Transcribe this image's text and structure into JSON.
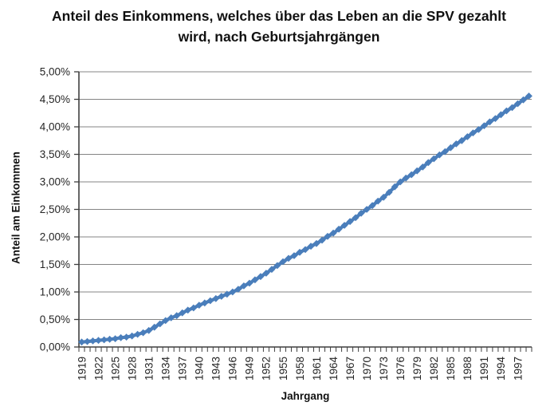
{
  "colors": {
    "series_blue": "#4a7ebb",
    "gridline_gray": "#848484",
    "axis_gray": "#3f3f3f",
    "tick_label_color": "#262626",
    "background": "#ffffff"
  },
  "chart_data": {
    "type": "line",
    "title": "Anteil des Einkommens, welches über das Leben an die SPV gezahlt wird, nach Geburtsjahrgängen",
    "xlabel": "Jahrgang",
    "ylabel": "Anteil am Einkommen",
    "ylim": [
      0,
      5
    ],
    "grid": true,
    "legend": "none",
    "y_tick_values": [
      0,
      0.5,
      1,
      1.5,
      2,
      2.5,
      3,
      3.5,
      4,
      4.5,
      5
    ],
    "y_tick_labels": [
      "0,00%",
      "0,50%",
      "1,00%",
      "1,50%",
      "2,00%",
      "2,50%",
      "3,00%",
      "3,50%",
      "4,00%",
      "4,50%",
      "5,00%"
    ],
    "x_tick_labels": [
      1919,
      1922,
      1925,
      1928,
      1931,
      1934,
      1937,
      1940,
      1943,
      1946,
      1949,
      1952,
      1955,
      1958,
      1961,
      1964,
      1967,
      1970,
      1973,
      1976,
      1979,
      1982,
      1985,
      1988,
      1991,
      1994,
      1997
    ],
    "series": [
      {
        "marker": "diamond",
        "color": "#4a7ebb",
        "x": [
          1919,
          1920,
          1921,
          1922,
          1923,
          1924,
          1925,
          1926,
          1927,
          1928,
          1929,
          1930,
          1931,
          1932,
          1933,
          1934,
          1935,
          1936,
          1937,
          1938,
          1939,
          1940,
          1941,
          1942,
          1943,
          1944,
          1945,
          1946,
          1947,
          1948,
          1949,
          1950,
          1951,
          1952,
          1953,
          1954,
          1955,
          1956,
          1957,
          1958,
          1959,
          1960,
          1961,
          1962,
          1963,
          1964,
          1965,
          1966,
          1967,
          1968,
          1969,
          1970,
          1971,
          1972,
          1973,
          1974,
          1975,
          1976,
          1977,
          1978,
          1979,
          1980,
          1981,
          1982,
          1983,
          1984,
          1985,
          1986,
          1987,
          1988,
          1989,
          1990,
          1991,
          1992,
          1993,
          1994,
          1995,
          1996,
          1997,
          1998,
          1999
        ],
        "y": [
          0.09,
          0.1,
          0.11,
          0.12,
          0.13,
          0.14,
          0.15,
          0.17,
          0.18,
          0.2,
          0.23,
          0.26,
          0.3,
          0.36,
          0.42,
          0.48,
          0.53,
          0.57,
          0.62,
          0.67,
          0.71,
          0.76,
          0.8,
          0.84,
          0.88,
          0.92,
          0.96,
          1.0,
          1.05,
          1.11,
          1.16,
          1.22,
          1.28,
          1.34,
          1.41,
          1.48,
          1.55,
          1.61,
          1.66,
          1.72,
          1.77,
          1.83,
          1.88,
          1.94,
          2.01,
          2.07,
          2.14,
          2.21,
          2.28,
          2.35,
          2.43,
          2.5,
          2.57,
          2.65,
          2.72,
          2.81,
          2.91,
          3.0,
          3.07,
          3.13,
          3.2,
          3.27,
          3.35,
          3.42,
          3.49,
          3.55,
          3.62,
          3.69,
          3.75,
          3.82,
          3.89,
          3.95,
          4.02,
          4.09,
          4.15,
          4.22,
          4.29,
          4.35,
          4.42,
          4.49,
          4.56
        ]
      }
    ]
  }
}
